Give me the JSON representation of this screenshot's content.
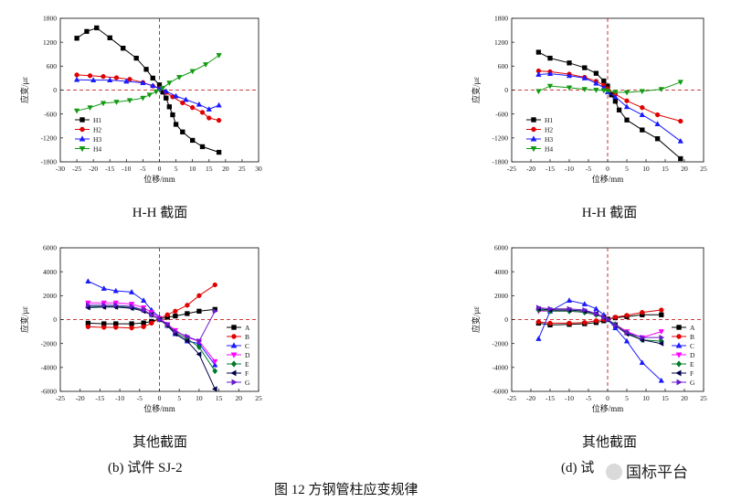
{
  "colors": {
    "black": "#000000",
    "red": "#e00000",
    "blue": "#1a1aff",
    "green": "#129a12",
    "magenta": "#ff00ff",
    "darkgreen": "#007a2a",
    "navy": "#00004a",
    "purple": "#6a1acd",
    "refline": "#c00000"
  },
  "captions": {
    "tl": "H-H 截面",
    "tr": "H-H 截面",
    "bl": "其他截面",
    "br": "其他截面"
  },
  "subfig": {
    "b": "(b)  试件 SJ-2",
    "d": "(d)  试"
  },
  "figure_caption": "图 12 方钢管柱应变规律",
  "watermark": "国标平台",
  "chart_data": [
    {
      "type": "line",
      "xlabel": "位移/mm",
      "ylabel": "应变/με",
      "xlim": [
        -30,
        30
      ],
      "ylim": [
        -1800,
        1800
      ],
      "xticks": [
        -30,
        -25,
        -20,
        -15,
        -10,
        -5,
        0,
        5,
        10,
        15,
        20,
        25,
        30
      ],
      "yticks": [
        -1800,
        -1200,
        -600,
        0,
        600,
        1200,
        1800
      ],
      "legend_position": "bottom-left",
      "series": [
        {
          "name": "H1",
          "color": "black",
          "marker": "square",
          "x": [
            -25,
            -22,
            -19,
            -15,
            -11,
            -7,
            -4,
            -2,
            0,
            1,
            2,
            3,
            4,
            5,
            7,
            10,
            13,
            18
          ],
          "y": [
            1300,
            1470,
            1560,
            1310,
            1050,
            800,
            520,
            300,
            130,
            -50,
            -200,
            -420,
            -620,
            -860,
            -1050,
            -1260,
            -1420,
            -1560
          ]
        },
        {
          "name": "H2",
          "color": "red",
          "marker": "circle",
          "x": [
            -25,
            -21,
            -17,
            -13,
            -9,
            -5,
            -2,
            0,
            2,
            4,
            7,
            10,
            13,
            15,
            18
          ],
          "y": [
            380,
            360,
            340,
            310,
            270,
            190,
            100,
            40,
            -60,
            -170,
            -320,
            -440,
            -560,
            -700,
            -760
          ]
        },
        {
          "name": "H3",
          "color": "blue",
          "marker": "triangle",
          "x": [
            -25,
            -20,
            -15,
            -10,
            -5,
            -2,
            0,
            2,
            5,
            8,
            12,
            15,
            18
          ],
          "y": [
            260,
            250,
            250,
            220,
            180,
            110,
            40,
            -30,
            -150,
            -240,
            -360,
            -480,
            -380
          ]
        },
        {
          "name": "H4",
          "color": "green",
          "marker": "triangle-down",
          "x": [
            -25,
            -21,
            -17,
            -13,
            -9,
            -5,
            -3,
            -1,
            1,
            3,
            6,
            10,
            14,
            18
          ],
          "y": [
            -520,
            -440,
            -330,
            -300,
            -260,
            -200,
            -120,
            -40,
            50,
            180,
            320,
            470,
            640,
            870
          ]
        }
      ]
    },
    {
      "type": "line",
      "xlabel": "位移/mm",
      "ylabel": "应变/με",
      "xlim": [
        -25,
        25
      ],
      "ylim": [
        -1800,
        1800
      ],
      "xticks": [
        -25,
        -20,
        -15,
        -10,
        -5,
        0,
        5,
        10,
        15,
        20,
        25
      ],
      "yticks": [
        -1800,
        -1200,
        -600,
        0,
        600,
        1200,
        1800
      ],
      "legend_position": "bottom-left",
      "series": [
        {
          "name": "H1",
          "color": "black",
          "marker": "square",
          "x": [
            -18,
            -15,
            -10,
            -6,
            -3,
            -1,
            0,
            1,
            2,
            3,
            5,
            9,
            13,
            19
          ],
          "y": [
            950,
            800,
            680,
            560,
            420,
            230,
            100,
            -120,
            -280,
            -500,
            -750,
            -1000,
            -1220,
            -1720
          ]
        },
        {
          "name": "H2",
          "color": "red",
          "marker": "circle",
          "x": [
            -18,
            -15,
            -10,
            -6,
            -3,
            -1,
            0,
            2,
            5,
            9,
            13,
            19
          ],
          "y": [
            480,
            460,
            400,
            320,
            220,
            120,
            30,
            -100,
            -270,
            -440,
            -620,
            -780
          ]
        },
        {
          "name": "H3",
          "color": "blue",
          "marker": "triangle",
          "x": [
            -18,
            -15,
            -10,
            -6,
            -3,
            -1,
            0,
            2,
            5,
            9,
            13,
            19
          ],
          "y": [
            390,
            410,
            360,
            300,
            170,
            60,
            -50,
            -170,
            -420,
            -620,
            -850,
            -1280
          ]
        },
        {
          "name": "H4",
          "color": "green",
          "marker": "triangle-down",
          "x": [
            -18,
            -15,
            -10,
            -6,
            -3,
            -1,
            0,
            2,
            5,
            9,
            14,
            19
          ],
          "y": [
            -30,
            100,
            60,
            20,
            0,
            -10,
            -20,
            -50,
            -60,
            -30,
            20,
            200
          ]
        }
      ]
    },
    {
      "type": "line",
      "xlabel": "位移/mm",
      "ylabel": "应变/με",
      "xlim": [
        -25,
        25
      ],
      "ylim": [
        -6000,
        6000
      ],
      "xticks": [
        -25,
        -20,
        -15,
        -10,
        -5,
        0,
        5,
        10,
        15,
        20,
        25
      ],
      "yticks": [
        -6000,
        -4000,
        -2000,
        0,
        2000,
        4000,
        6000
      ],
      "legend_position": "right",
      "series": [
        {
          "name": "A",
          "color": "black",
          "marker": "square",
          "x": [
            -18,
            -14,
            -11,
            -7,
            -4,
            -2,
            0,
            2,
            4,
            7,
            10,
            14
          ],
          "y": [
            -300,
            -350,
            -350,
            -350,
            -280,
            -150,
            50,
            200,
            300,
            500,
            700,
            850
          ]
        },
        {
          "name": "B",
          "color": "red",
          "marker": "circle",
          "x": [
            -18,
            -14,
            -11,
            -7,
            -4,
            -2,
            0,
            2,
            4,
            7,
            10,
            14
          ],
          "y": [
            -600,
            -650,
            -650,
            -700,
            -600,
            -300,
            100,
            400,
            700,
            1200,
            2000,
            2900
          ]
        },
        {
          "name": "C",
          "color": "blue",
          "marker": "triangle",
          "x": [
            -18,
            -14,
            -11,
            -7,
            -4,
            -2,
            0,
            2,
            4,
            7,
            10,
            14
          ],
          "y": [
            3200,
            2600,
            2400,
            2300,
            1600,
            800,
            200,
            -500,
            -1200,
            -1800,
            -2000,
            -3800
          ]
        },
        {
          "name": "D",
          "color": "magenta",
          "marker": "triangle-down",
          "x": [
            -18,
            -14,
            -11,
            -7,
            -4,
            -2,
            0,
            2,
            4,
            7,
            10,
            14
          ],
          "y": [
            1400,
            1400,
            1400,
            1300,
            1000,
            600,
            100,
            -400,
            -900,
            -1500,
            -1800,
            -3500
          ]
        },
        {
          "name": "E",
          "color": "darkgreen",
          "marker": "diamond",
          "x": [
            -18,
            -14,
            -11,
            -7,
            -4,
            -2,
            0,
            2,
            4,
            7,
            10,
            14
          ],
          "y": [
            1100,
            1100,
            1100,
            1000,
            800,
            400,
            0,
            -500,
            -1100,
            -1600,
            -2300,
            -4300
          ]
        },
        {
          "name": "F",
          "color": "navy",
          "marker": "triangle-left",
          "x": [
            -18,
            -14,
            -11,
            -7,
            -4,
            -2,
            0,
            2,
            4,
            7,
            10,
            14
          ],
          "y": [
            1000,
            1050,
            1050,
            950,
            700,
            400,
            0,
            -500,
            -1200,
            -1800,
            -2900,
            -5800
          ]
        },
        {
          "name": "G",
          "color": "purple",
          "marker": "triangle-right",
          "x": [
            -18,
            -14,
            -11,
            -7,
            -4,
            -2,
            0,
            2,
            4,
            7,
            10,
            14
          ],
          "y": [
            1200,
            1200,
            1200,
            1100,
            800,
            400,
            0,
            -400,
            -1000,
            -1400,
            -1800,
            700
          ]
        }
      ]
    },
    {
      "type": "line",
      "xlabel": "位移/mm",
      "ylabel": "应变/με",
      "xlim": [
        -25,
        25
      ],
      "ylim": [
        -6000,
        6000
      ],
      "xticks": [
        -25,
        -20,
        -15,
        -10,
        -5,
        0,
        5,
        10,
        15,
        20,
        25
      ],
      "yticks": [
        -6000,
        -4000,
        -2000,
        0,
        2000,
        4000,
        6000
      ],
      "legend_position": "right",
      "series": [
        {
          "name": "A",
          "color": "black",
          "marker": "square",
          "x": [
            -18,
            -15,
            -10,
            -6,
            -3,
            -1,
            0,
            2,
            5,
            9,
            14
          ],
          "y": [
            -300,
            -450,
            -400,
            -350,
            -250,
            -100,
            50,
            150,
            250,
            400,
            400
          ]
        },
        {
          "name": "B",
          "color": "red",
          "marker": "circle",
          "x": [
            -18,
            -15,
            -10,
            -6,
            -3,
            -1,
            0,
            2,
            5,
            9,
            14
          ],
          "y": [
            -200,
            -300,
            -300,
            -250,
            -100,
            0,
            50,
            200,
            350,
            600,
            800
          ]
        },
        {
          "name": "C",
          "color": "blue",
          "marker": "triangle",
          "x": [
            -18,
            -15,
            -10,
            -6,
            -3,
            -1,
            0,
            2,
            5,
            9,
            14
          ],
          "y": [
            -1600,
            700,
            1600,
            1300,
            900,
            400,
            0,
            -700,
            -1800,
            -3600,
            -5100
          ]
        },
        {
          "name": "D",
          "color": "magenta",
          "marker": "triangle-down",
          "x": [
            -18,
            -15,
            -10,
            -6,
            -3,
            -1,
            0,
            2,
            5,
            9,
            14
          ],
          "y": [
            700,
            700,
            700,
            600,
            400,
            200,
            0,
            -400,
            -1000,
            -1500,
            -1000
          ]
        },
        {
          "name": "E",
          "color": "darkgreen",
          "marker": "diamond",
          "x": [
            -18,
            -15,
            -10,
            -6,
            -3,
            -1,
            0,
            2,
            5,
            9,
            14
          ],
          "y": [
            800,
            700,
            700,
            600,
            400,
            200,
            0,
            -400,
            -1100,
            -1700,
            -1800
          ]
        },
        {
          "name": "F",
          "color": "navy",
          "marker": "triangle-left",
          "x": [
            -18,
            -15,
            -10,
            -6,
            -3,
            -1,
            0,
            2,
            5,
            9,
            14
          ],
          "y": [
            900,
            800,
            800,
            700,
            500,
            200,
            0,
            -500,
            -1200,
            -1700,
            -2000
          ]
        },
        {
          "name": "G",
          "color": "purple",
          "marker": "triangle-right",
          "x": [
            -18,
            -15,
            -10,
            -6,
            -3,
            -1,
            0,
            2,
            5,
            9,
            14
          ],
          "y": [
            1000,
            900,
            900,
            800,
            500,
            200,
            0,
            -500,
            -1100,
            -1500,
            -1500
          ]
        }
      ]
    }
  ]
}
